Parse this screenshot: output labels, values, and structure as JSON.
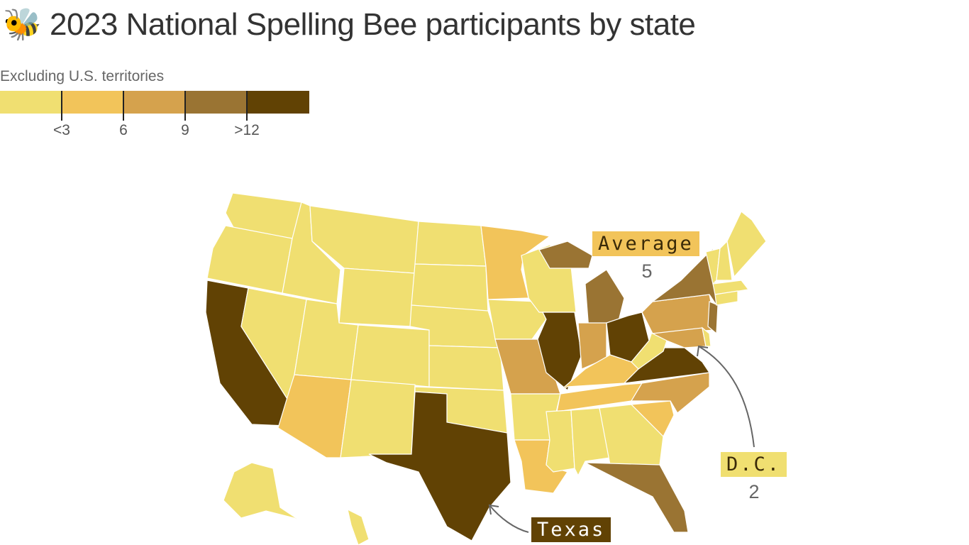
{
  "title": "🐝 2023 National Spelling Bee participants by state",
  "subtitle": "Excluding U.S. territories",
  "legend": {
    "colors": [
      "#f0df71",
      "#f2c45a",
      "#d5a24d",
      "#9a7433",
      "#614204"
    ],
    "ticks": [
      "<3",
      "6",
      "9",
      ">12"
    ]
  },
  "annotations": {
    "average": {
      "label": "Average",
      "value": "5",
      "color": "#f2c45a"
    },
    "dc": {
      "label": "D.C.",
      "value": "2",
      "color": "#f0df71"
    },
    "texas": {
      "label": "Texas",
      "color": "#614204"
    }
  },
  "state_bins": {
    "WA": 0,
    "OR": 0,
    "CA": 4,
    "NV": 0,
    "ID": 0,
    "MT": 0,
    "WY": 0,
    "UT": 0,
    "AZ": 1,
    "CO": 0,
    "NM": 0,
    "ND": 0,
    "SD": 0,
    "NE": 0,
    "KS": 0,
    "OK": 0,
    "TX": 4,
    "MN": 1,
    "IA": 0,
    "MO": 2,
    "AR": 0,
    "LA": 1,
    "WI": 0,
    "IL": 4,
    "MI": 3,
    "IN": 2,
    "OH": 4,
    "KY": 1,
    "TN": 1,
    "MS": 0,
    "AL": 0,
    "GA": 0,
    "FL": 3,
    "SC": 1,
    "NC": 2,
    "VA": 4,
    "WV": 0,
    "PA": 2,
    "NY": 3,
    "NJ": 3,
    "MD": 2,
    "DE": 0,
    "VT": 0,
    "NH": 0,
    "ME": 0,
    "MA": 0,
    "CT": 0,
    "AK": 0,
    "HI": 0
  }
}
